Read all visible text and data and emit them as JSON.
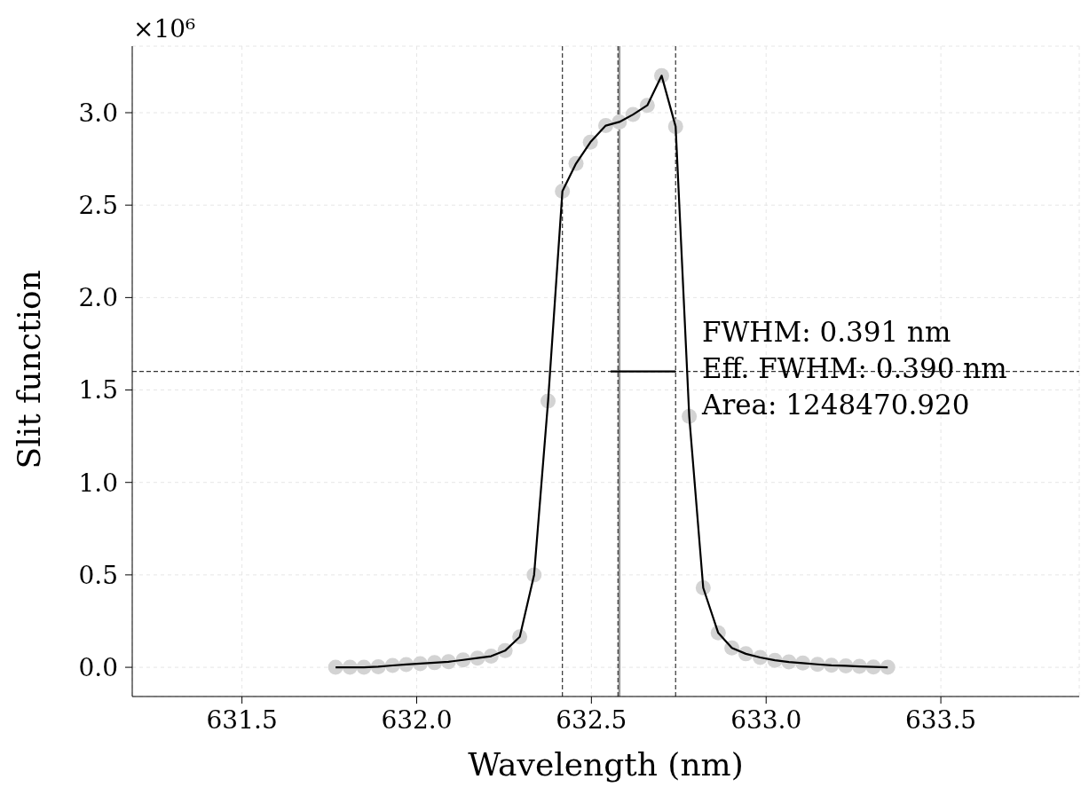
{
  "chart_data": {
    "type": "scatter",
    "xlabel": "Wavelength (nm)",
    "ylabel": "Slit function",
    "annotations": [
      "×10⁶",
      "FWHM: 0.391 nm",
      "Eff. FWHM: 0.390 nm",
      "Area: 1248470.920"
    ],
    "x": [
      631.768,
      631.809,
      631.849,
      631.89,
      631.931,
      631.97,
      632.01,
      632.051,
      632.091,
      632.133,
      632.174,
      632.213,
      632.253,
      632.295,
      632.336,
      632.376,
      632.417,
      632.456,
      632.497,
      632.541,
      632.58,
      632.619,
      632.66,
      632.701,
      632.741,
      632.78,
      632.82,
      632.863,
      632.902,
      632.942,
      632.983,
      633.025,
      633.065,
      633.105,
      633.147,
      633.187,
      633.228,
      633.267,
      633.307,
      633.348
    ],
    "series": [
      {
        "color": "#d3d3d3",
        "marker": "circle",
        "values": [
          0.0,
          0.0,
          0.0,
          0.003,
          0.01,
          0.015,
          0.02,
          0.025,
          0.03,
          0.04,
          0.05,
          0.06,
          0.09,
          0.165,
          0.5,
          1.44,
          2.575,
          2.725,
          2.84,
          2.93,
          2.95,
          2.99,
          3.04,
          3.2,
          2.925,
          1.357,
          0.43,
          0.186,
          0.105,
          0.073,
          0.053,
          0.038,
          0.029,
          0.023,
          0.016,
          0.011,
          0.008,
          0.005,
          0.002,
          0.0
        ]
      },
      {
        "type": "line",
        "color": "#000000",
        "marker": "none",
        "values": [
          0.0,
          0.0,
          0.0,
          0.003,
          0.01,
          0.015,
          0.02,
          0.025,
          0.03,
          0.04,
          0.05,
          0.06,
          0.09,
          0.165,
          0.5,
          1.44,
          2.575,
          2.725,
          2.84,
          2.93,
          2.95,
          2.99,
          3.04,
          3.2,
          2.925,
          1.357,
          0.43,
          0.186,
          0.105,
          0.073,
          0.053,
          0.038,
          0.029,
          0.023,
          0.016,
          0.011,
          0.008,
          0.005,
          0.002,
          0.0
        ]
      },
      {
        "type": "line",
        "color": "#000000",
        "marker": "none",
        "x": [
          632.555,
          632.741
        ],
        "values": [
          1.6,
          1.6
        ]
      }
    ],
    "ref_lines": [
      {
        "axis": "x",
        "value": 632.417,
        "line_style": "dashed",
        "color": "#333333"
      },
      {
        "axis": "x",
        "value": 632.58,
        "line_style": "solid",
        "color": "#999999"
      },
      {
        "axis": "x",
        "value": 632.576,
        "line_style": "dashed",
        "color": "#333333"
      },
      {
        "axis": "x",
        "value": 632.741,
        "line_style": "dashed",
        "color": "#333333"
      },
      {
        "axis": "y",
        "value": 1.6,
        "line_style": "dashed",
        "color": "#333333"
      }
    ],
    "xlim": [
      631.186,
      633.896
    ],
    "xticks": [
      {
        "value": 631.5,
        "label": "631.5"
      },
      {
        "value": 632.0,
        "label": "632.0"
      },
      {
        "value": 632.5,
        "label": "632.5"
      },
      {
        "value": 633.0,
        "label": "633.0"
      },
      {
        "value": 633.5,
        "label": "633.5"
      }
    ],
    "ylim": [
      -0.158,
      3.36
    ],
    "yticks": [
      {
        "value": 0,
        "label": "0.0"
      },
      {
        "value": 0.5,
        "label": "0.5"
      },
      {
        "value": 1.0,
        "label": "1.0"
      },
      {
        "value": 1.5,
        "label": "1.5"
      },
      {
        "value": 2.0,
        "label": "2.0"
      },
      {
        "value": 2.5,
        "label": "2.5"
      },
      {
        "value": 3.0,
        "label": "3.0"
      }
    ],
    "grid": true,
    "legend": false
  }
}
